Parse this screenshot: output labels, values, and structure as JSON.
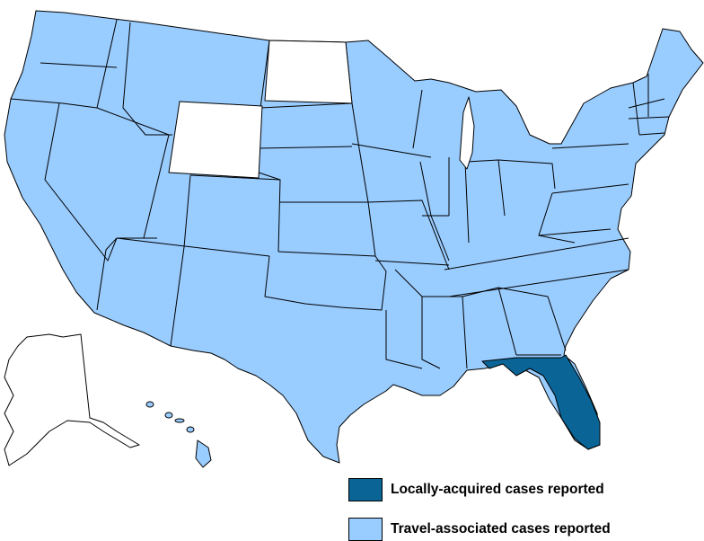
{
  "map": {
    "status_colors": {
      "locally_acquired": "#0a6496",
      "travel_associated": "#99ccff",
      "none": "#ffffff"
    },
    "states_no_cases": [
      "Wyoming",
      "North Dakota",
      "Alaska"
    ],
    "states_locally_acquired": [
      "Florida"
    ],
    "states_travel_associated": [
      "all other states"
    ]
  },
  "legend": {
    "items": [
      {
        "label": "Locally-acquired cases reported",
        "color": "#0a6496"
      },
      {
        "label": "Travel-associated cases reported",
        "color": "#99ccff"
      }
    ]
  }
}
